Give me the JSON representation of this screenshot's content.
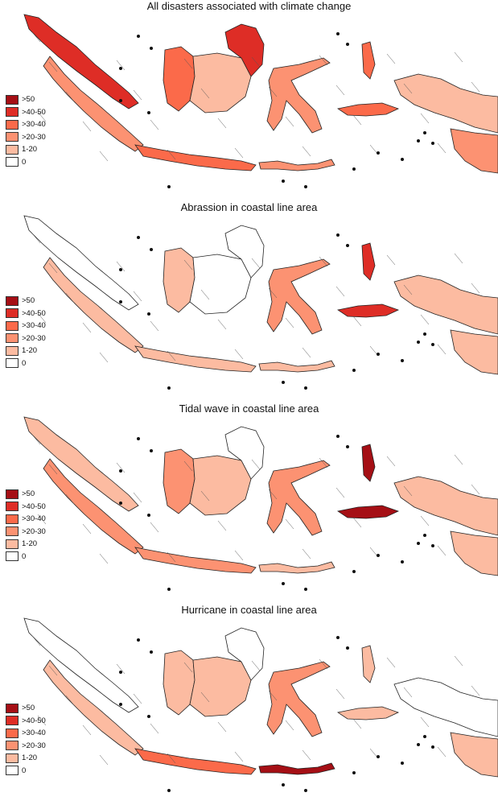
{
  "legend_labels": [
    ">50",
    ">40-50",
    ">30-40",
    ">20-30",
    "1-20",
    "0"
  ],
  "legend_colors": [
    "#a50f15",
    "#de2d26",
    "#fb6a4a",
    "#fc9272",
    "#fcbba1",
    "#ffffff"
  ],
  "panels": [
    {
      "title": "All disasters associated with climate change",
      "shading": {
        "sumatra_south": 3,
        "sumatra_north": 1,
        "kalimantan_west": 2,
        "kalimantan_central": 4,
        "kalimantan_east": 1,
        "java": 2,
        "nusa_tenggara": 3,
        "sulawesi": 3,
        "maluku": 2,
        "papua_west": 4,
        "papua_south": 3
      }
    },
    {
      "title": "Abrassion in coastal line area",
      "shading": {
        "sumatra_south": 4,
        "sumatra_north": 5,
        "kalimantan_west": 4,
        "kalimantan_central": 5,
        "kalimantan_east": 5,
        "java": 4,
        "nusa_tenggara": 4,
        "sulawesi": 3,
        "maluku": 1,
        "papua_west": 4,
        "papua_south": 4
      }
    },
    {
      "title": "Tidal wave in coastal line area",
      "shading": {
        "sumatra_south": 3,
        "sumatra_north": 4,
        "kalimantan_west": 3,
        "kalimantan_central": 4,
        "kalimantan_east": 5,
        "java": 3,
        "nusa_tenggara": 4,
        "sulawesi": 3,
        "maluku": 0,
        "papua_west": 4,
        "papua_south": 4
      }
    },
    {
      "title": "Hurricane in coastal line area",
      "shading": {
        "sumatra_south": 4,
        "sumatra_north": 5,
        "kalimantan_west": 4,
        "kalimantan_central": 4,
        "kalimantan_east": 5,
        "java": 2,
        "nusa_tenggara": 0,
        "sulawesi": 3,
        "maluku": 4,
        "papua_west": 5,
        "papua_south": 4
      }
    }
  ]
}
